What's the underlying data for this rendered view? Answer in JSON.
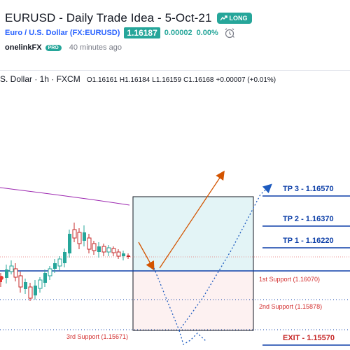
{
  "idea": {
    "title": "EURUSD - Daily Trade Idea - 5-Oct-21",
    "direction_badge": "LONG"
  },
  "symbol": {
    "name": "Euro / U.S. Dollar (FX:EURUSD)",
    "price": "1.16187",
    "change": "0.00002",
    "change_pct": "0.00%"
  },
  "author": {
    "name": "onelinkFX",
    "badge": "PRO",
    "posted": "40 minutes ago"
  },
  "legend": {
    "symbol": "S. Dollar · 1h · FXCM",
    "open": "O1.16161",
    "high": "H1.16184",
    "low": "L1.16159",
    "close": "C1.16168",
    "change": "+0.00007 (+0.01%)"
  },
  "levels": {
    "tp3": "TP 3 - 1.16570",
    "tp2": "TP 2 - 1.16370",
    "tp1": "TP 1 - 1.16220",
    "support1": "1st Support (1.16070)",
    "support2": "2nd Support (1.15878)",
    "support3": "3rd Support (1.15671)",
    "exit": "EXIT - 1.15570"
  },
  "colors": {
    "accent_green": "#26a69a",
    "link_blue": "#2962ff",
    "level_blue": "#0d3fa8",
    "support_red": "#d32f2f",
    "moving_average": "#9c27b0"
  },
  "chart_data": {
    "type": "candlestick",
    "interval": "1h",
    "levels": [
      {
        "name": "TP 3",
        "value": 1.1657
      },
      {
        "name": "TP 2",
        "value": 1.1637
      },
      {
        "name": "TP 1",
        "value": 1.1622
      },
      {
        "name": "1st Support",
        "value": 1.1607
      },
      {
        "name": "2nd Support",
        "value": 1.15878
      },
      {
        "name": "3rd Support",
        "value": 1.15671
      },
      {
        "name": "EXIT",
        "value": 1.1557
      }
    ],
    "last_bar": {
      "open": 1.16161,
      "high": 1.16184,
      "low": 1.16159,
      "close": 1.16168
    }
  }
}
